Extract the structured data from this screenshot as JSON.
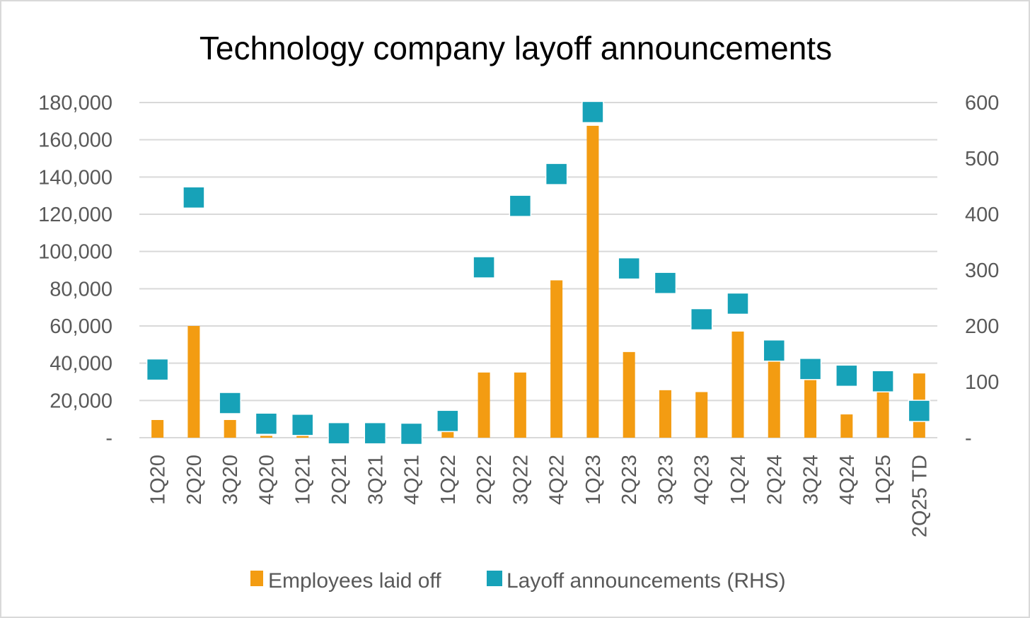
{
  "chart_data": {
    "type": "bar",
    "title": "Technology company layoff announcements",
    "categories": [
      "1Q20",
      "2Q20",
      "3Q20",
      "4Q20",
      "1Q21",
      "2Q21",
      "3Q21",
      "4Q21",
      "1Q22",
      "2Q22",
      "3Q22",
      "4Q22",
      "1Q23",
      "2Q23",
      "3Q23",
      "4Q23",
      "1Q24",
      "2Q24",
      "3Q24",
      "4Q24",
      "1Q25",
      "2Q25 TD"
    ],
    "series": [
      {
        "name": "Employees laid off",
        "type": "bar",
        "axis": "left",
        "color": "#f39c12",
        "values": [
          9500,
          60000,
          9500,
          1000,
          1000,
          0,
          0,
          0,
          3000,
          35000,
          35000,
          84500,
          167500,
          46000,
          25500,
          24500,
          57000,
          42000,
          32000,
          12500,
          25000,
          34500
        ]
      },
      {
        "name": "Layoff announcements (RHS)",
        "type": "scatter",
        "marker": "square",
        "axis": "right",
        "color": "#17a2b8",
        "values": [
          122,
          430,
          62,
          25,
          23,
          8,
          8,
          7,
          30,
          305,
          415,
          472,
          583,
          303,
          277,
          212,
          240,
          156,
          123,
          111,
          101,
          48
        ]
      }
    ],
    "y_left": {
      "ylim": [
        0,
        180000
      ],
      "tick_labels": [
        "-",
        "20,000",
        "40,000",
        "60,000",
        "80,000",
        "100,000",
        "120,000",
        "140,000",
        "160,000",
        "180,000"
      ]
    },
    "y_right": {
      "ylim": [
        0,
        600
      ],
      "tick_labels": [
        "-",
        "100",
        "200",
        "300",
        "400",
        "500",
        "600"
      ]
    },
    "xlabel": "",
    "ylabel": "",
    "grid": true,
    "legend_position": "bottom"
  }
}
